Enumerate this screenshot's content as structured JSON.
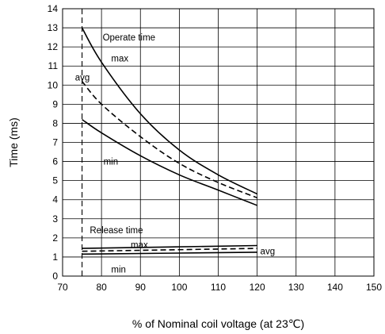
{
  "chart_data": {
    "type": "line",
    "title": "",
    "xlabel": "% of Nominal coil voltage (at 23℃)",
    "ylabel": "Time (ms)",
    "xlim": [
      70,
      150
    ],
    "ylim": [
      0,
      14
    ],
    "x_ticks": [
      70,
      80,
      90,
      100,
      110,
      120,
      130,
      140,
      150
    ],
    "y_ticks": [
      0,
      1,
      2,
      3,
      4,
      5,
      6,
      7,
      8,
      9,
      10,
      11,
      12,
      13,
      14
    ],
    "grid": true,
    "reference_line": {
      "x": 75,
      "style": "dashed"
    },
    "series": [
      {
        "name": "max",
        "group": "Operate time",
        "style": "solid",
        "x": [
          75,
          80,
          90,
          100,
          110,
          120
        ],
        "y": [
          13.0,
          11.2,
          8.5,
          6.6,
          5.3,
          4.3
        ]
      },
      {
        "name": "avg",
        "group": "Operate time",
        "style": "dashed",
        "x": [
          75,
          80,
          90,
          100,
          110,
          120
        ],
        "y": [
          10.2,
          9.0,
          7.3,
          5.9,
          4.9,
          4.1
        ]
      },
      {
        "name": "min",
        "group": "Operate time",
        "style": "solid",
        "x": [
          75,
          80,
          90,
          100,
          110,
          120
        ],
        "y": [
          8.2,
          7.5,
          6.3,
          5.3,
          4.5,
          3.7
        ]
      },
      {
        "name": "max",
        "group": "Release time",
        "style": "solid",
        "x": [
          75,
          120
        ],
        "y": [
          1.45,
          1.6
        ]
      },
      {
        "name": "avg",
        "group": "Release time",
        "style": "dashed",
        "x": [
          75,
          120
        ],
        "y": [
          1.3,
          1.45
        ]
      },
      {
        "name": "min",
        "group": "Release time",
        "style": "solid",
        "x": [
          75,
          120
        ],
        "y": [
          1.15,
          1.25
        ]
      }
    ],
    "annotations": [
      {
        "text": "Operate time",
        "x": 80.3,
        "y": 12.5
      },
      {
        "text": "max",
        "x": 82.5,
        "y": 11.4
      },
      {
        "text": "avg",
        "x": 73.2,
        "y": 10.4
      },
      {
        "text": "min",
        "x": 80.5,
        "y": 6.0
      },
      {
        "text": "Release time",
        "x": 77.0,
        "y": 2.4
      },
      {
        "text": "max",
        "x": 87.5,
        "y": 1.65
      },
      {
        "text": "avg",
        "x": 120.8,
        "y": 1.3
      },
      {
        "text": "min",
        "x": 82.5,
        "y": 0.35
      }
    ]
  }
}
